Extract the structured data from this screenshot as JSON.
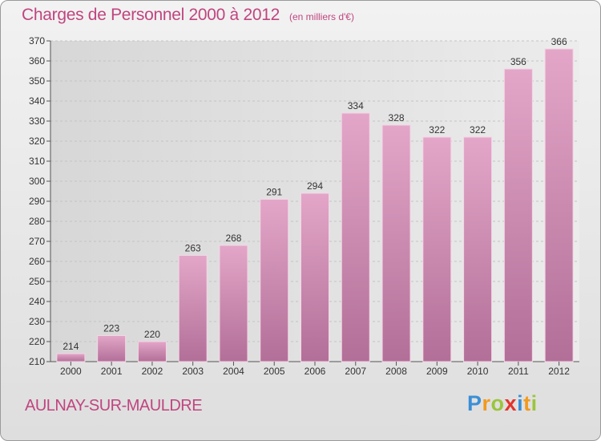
{
  "header": {
    "title": "Charges de Personnel 2000 à 2012",
    "unit": "(en milliers d'€)"
  },
  "footer": {
    "city": "AULNAY-SUR-MAULDRE",
    "logo": [
      "P",
      "r",
      "o",
      "x",
      "i",
      "t",
      "i"
    ],
    "logo_colors": [
      "#3a8fd6",
      "#f29a1f",
      "#9bc53d",
      "#e2342c",
      "#3a8fd6",
      "#f29a1f",
      "#9bc53d"
    ]
  },
  "chart_data": {
    "type": "bar",
    "title": "Charges de Personnel 2000 à 2012",
    "subtitle": "(en milliers d'€)",
    "categories": [
      "2000",
      "2001",
      "2002",
      "2003",
      "2004",
      "2005",
      "2006",
      "2007",
      "2008",
      "2009",
      "2010",
      "2011",
      "2012"
    ],
    "values": [
      214,
      223,
      220,
      263,
      268,
      291,
      294,
      334,
      328,
      322,
      322,
      356,
      366
    ],
    "ylim": [
      210,
      370
    ],
    "yticks": [
      210,
      220,
      230,
      240,
      250,
      260,
      270,
      280,
      290,
      300,
      310,
      320,
      330,
      340,
      350,
      360,
      370
    ],
    "grid": true,
    "bar_color": "#d98bb5"
  }
}
